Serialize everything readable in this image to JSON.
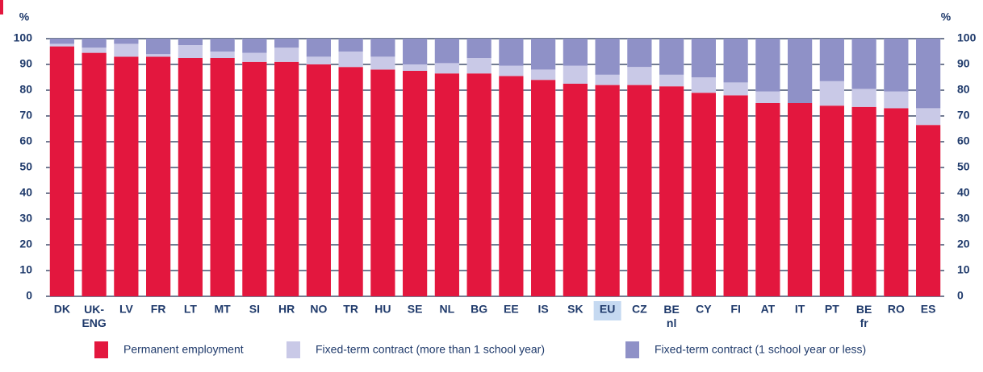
{
  "chart_data": {
    "type": "stacked_bar",
    "y_label": "%",
    "categories": [
      "DK",
      "UK-\nENG",
      "LV",
      "FR",
      "LT",
      "MT",
      "SI",
      "HR",
      "NO",
      "TR",
      "HU",
      "SE",
      "NL",
      "BG",
      "EE",
      "IS",
      "SK",
      "EU",
      "CZ",
      "BE\nnl",
      "CY",
      "FI",
      "AT",
      "IT",
      "PT",
      "BE\nfr",
      "RO",
      "ES"
    ],
    "highlight_category": "EU",
    "series": [
      {
        "name": "Permanent employment",
        "color": "#e3173e",
        "values": [
          97,
          94.5,
          93,
          93,
          92.5,
          92.5,
          91,
          91,
          90,
          89,
          88,
          87.5,
          86.5,
          86.5,
          85.5,
          84,
          82.5,
          82,
          82,
          81.5,
          79,
          78,
          75,
          75,
          74,
          73.5,
          73,
          66.5
        ]
      },
      {
        "name": "Fixed-term contract (more than 1 school year)",
        "color": "#c9c9e7",
        "values": [
          1,
          2,
          5,
          1,
          5,
          2.5,
          3.5,
          5.5,
          3,
          6,
          5,
          2.5,
          4,
          6,
          4,
          4,
          7,
          4,
          7,
          4.5,
          6,
          5,
          4.5,
          0,
          9.5,
          7,
          6.5,
          6.5
        ]
      },
      {
        "name": "Fixed-term contract (1 school year or less)",
        "color": "#8f91c7",
        "values": [
          2,
          3.5,
          2,
          6,
          2.5,
          5,
          5.5,
          3.5,
          7,
          5,
          7,
          10,
          9.5,
          7.5,
          10.5,
          12,
          10.5,
          14,
          11,
          14,
          15,
          17,
          20.5,
          25,
          16.5,
          19.5,
          20.5,
          27
        ]
      }
    ],
    "ylim": [
      0,
      100
    ],
    "yticks": [
      0,
      10,
      20,
      30,
      40,
      50,
      60,
      70,
      80,
      90,
      100
    ],
    "grid": true
  }
}
